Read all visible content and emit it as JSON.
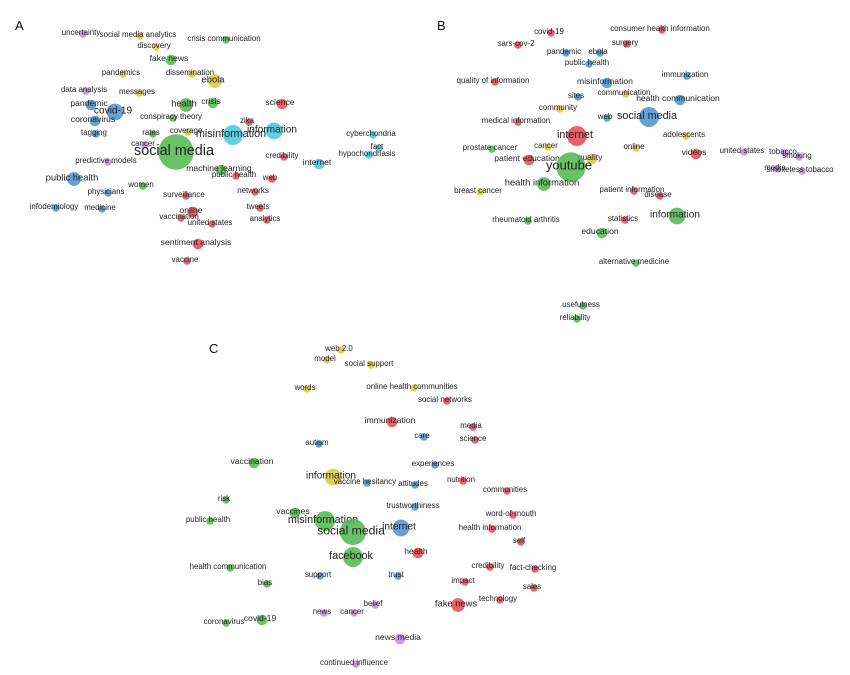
{
  "colors": {
    "red": "#e8474e",
    "green": "#4cb84a",
    "blue": "#4a90d0",
    "yellow": "#d9c93a",
    "purple": "#b98de0",
    "cyan": "#45c4de"
  },
  "panels": [
    {
      "letter": "A",
      "nodes": [
        {
          "label": "uncertainty",
          "c": "purple",
          "w": 1
        },
        {
          "label": "social media analytics",
          "c": "yellow",
          "w": 1
        },
        {
          "label": "crisis communication",
          "c": "green",
          "w": 1
        },
        {
          "label": "discovery",
          "c": "yellow",
          "w": 1
        },
        {
          "label": "fake news",
          "c": "green",
          "w": 2
        },
        {
          "label": "dissemination",
          "c": "yellow",
          "w": 1
        },
        {
          "label": "pandemics",
          "c": "yellow",
          "w": 1
        },
        {
          "label": "ebola",
          "c": "yellow",
          "w": 3
        },
        {
          "label": "data analysis",
          "c": "purple",
          "w": 1
        },
        {
          "label": "messages",
          "c": "yellow",
          "w": 1
        },
        {
          "label": "pandemic",
          "c": "blue",
          "w": 2
        },
        {
          "label": "health",
          "c": "green",
          "w": 3
        },
        {
          "label": "crisis",
          "c": "green",
          "w": 2
        },
        {
          "label": "science",
          "c": "red",
          "w": 2
        },
        {
          "label": "covid-19",
          "c": "blue",
          "w": 4
        },
        {
          "label": "conspiracy theory",
          "c": "green",
          "w": 1
        },
        {
          "label": "coronavirus",
          "c": "blue",
          "w": 2
        },
        {
          "label": "zika",
          "c": "red",
          "w": 1
        },
        {
          "label": "tagging",
          "c": "blue",
          "w": 1
        },
        {
          "label": "rates",
          "c": "green",
          "w": 1
        },
        {
          "label": "coverage",
          "c": "yellow",
          "w": 1
        },
        {
          "label": "information",
          "c": "cyan",
          "w": 4
        },
        {
          "label": "misinformation",
          "c": "cyan",
          "w": 5
        },
        {
          "label": "cyberchondria",
          "c": "cyan",
          "w": 1
        },
        {
          "label": "cancer",
          "c": "purple",
          "w": 1
        },
        {
          "label": "social media",
          "c": "green",
          "w": 10
        },
        {
          "label": "fact",
          "c": "cyan",
          "w": 1
        },
        {
          "label": "hypochondriasis",
          "c": "cyan",
          "w": 1
        },
        {
          "label": "credibility",
          "c": "red",
          "w": 1
        },
        {
          "label": "predictive models",
          "c": "purple",
          "w": 1
        },
        {
          "label": "machine learning",
          "c": "green",
          "w": 2
        },
        {
          "label": "internet",
          "c": "cyan",
          "w": 2
        },
        {
          "label": "public health",
          "c": "blue",
          "w": 3
        },
        {
          "label": "public health",
          "c": "red",
          "w": 1
        },
        {
          "label": "web",
          "c": "red",
          "w": 1
        },
        {
          "label": "women",
          "c": "green",
          "w": 1
        },
        {
          "label": "physicians",
          "c": "blue",
          "w": 1
        },
        {
          "label": "networks",
          "c": "red",
          "w": 1
        },
        {
          "label": "surveillance",
          "c": "red",
          "w": 1
        },
        {
          "label": "infodemiology",
          "c": "blue",
          "w": 1
        },
        {
          "label": "medicine",
          "c": "blue",
          "w": 1
        },
        {
          "label": "tweets",
          "c": "red",
          "w": 1
        },
        {
          "label": "online",
          "c": "red",
          "w": 2
        },
        {
          "label": "vaccination",
          "c": "red",
          "w": 1
        },
        {
          "label": "analytics",
          "c": "red",
          "w": 1
        },
        {
          "label": "united states",
          "c": "red",
          "w": 1
        },
        {
          "label": "sentiment analysis",
          "c": "red",
          "w": 2
        },
        {
          "label": "vaccine",
          "c": "red",
          "w": 1
        }
      ]
    },
    {
      "letter": "B",
      "nodes": [
        {
          "label": "covid-19",
          "c": "red",
          "w": 1
        },
        {
          "label": "consumer health information",
          "c": "red",
          "w": 1
        },
        {
          "label": "sars-cov-2",
          "c": "red",
          "w": 1
        },
        {
          "label": "surgery",
          "c": "red",
          "w": 1
        },
        {
          "label": "pandemic",
          "c": "blue",
          "w": 1
        },
        {
          "label": "ebola",
          "c": "blue",
          "w": 1
        },
        {
          "label": "public health",
          "c": "blue",
          "w": 1
        },
        {
          "label": "immunization",
          "c": "blue",
          "w": 1
        },
        {
          "label": "quality of information",
          "c": "red",
          "w": 1
        },
        {
          "label": "misinformation",
          "c": "blue",
          "w": 2
        },
        {
          "label": "communication",
          "c": "yellow",
          "w": 1
        },
        {
          "label": "sites",
          "c": "blue",
          "w": 1
        },
        {
          "label": "health communication",
          "c": "blue",
          "w": 2
        },
        {
          "label": "community",
          "c": "yellow",
          "w": 1
        },
        {
          "label": "web",
          "c": "blue",
          "w": 1
        },
        {
          "label": "social media",
          "c": "blue",
          "w": 5
        },
        {
          "label": "medical information",
          "c": "red",
          "w": 1
        },
        {
          "label": "adolescents",
          "c": "yellow",
          "w": 1
        },
        {
          "label": "internet",
          "c": "red",
          "w": 5
        },
        {
          "label": "cancer",
          "c": "yellow",
          "w": 1
        },
        {
          "label": "online",
          "c": "yellow",
          "w": 1
        },
        {
          "label": "prostate cancer",
          "c": "green",
          "w": 1
        },
        {
          "label": "united states",
          "c": "purple",
          "w": 1
        },
        {
          "label": "tobacco",
          "c": "purple",
          "w": 1
        },
        {
          "label": "patient education",
          "c": "red",
          "w": 2
        },
        {
          "label": "quality",
          "c": "yellow",
          "w": 2
        },
        {
          "label": "videos",
          "c": "red",
          "w": 2
        },
        {
          "label": "smoking",
          "c": "purple",
          "w": 1
        },
        {
          "label": "youtube",
          "c": "green",
          "w": 8
        },
        {
          "label": "media",
          "c": "purple",
          "w": 1
        },
        {
          "label": "smokeless tobacco",
          "c": "purple",
          "w": 1
        },
        {
          "label": "health information",
          "c": "green",
          "w": 3
        },
        {
          "label": "patient information",
          "c": "red",
          "w": 1
        },
        {
          "label": "disease",
          "c": "red",
          "w": 1
        },
        {
          "label": "breast cancer",
          "c": "yellow",
          "w": 1
        },
        {
          "label": "statistics",
          "c": "red",
          "w": 1
        },
        {
          "label": "information",
          "c": "green",
          "w": 4
        },
        {
          "label": "rheumatoid arthritis",
          "c": "green",
          "w": 1
        },
        {
          "label": "education",
          "c": "green",
          "w": 2
        },
        {
          "label": "alternative medicine",
          "c": "green",
          "w": 1
        },
        {
          "label": "usefulness",
          "c": "green",
          "w": 1
        },
        {
          "label": "reliability",
          "c": "green",
          "w": 1
        }
      ]
    },
    {
      "letter": "C",
      "nodes": [
        {
          "label": "web 2.0",
          "c": "yellow",
          "w": 1
        },
        {
          "label": "model",
          "c": "yellow",
          "w": 1
        },
        {
          "label": "social support",
          "c": "yellow",
          "w": 1
        },
        {
          "label": "words",
          "c": "yellow",
          "w": 1
        },
        {
          "label": "online health communities",
          "c": "yellow",
          "w": 1
        },
        {
          "label": "social networks",
          "c": "red",
          "w": 1
        },
        {
          "label": "immunization",
          "c": "red",
          "w": 2
        },
        {
          "label": "media",
          "c": "red",
          "w": 1
        },
        {
          "label": "care",
          "c": "blue",
          "w": 1
        },
        {
          "label": "science",
          "c": "red",
          "w": 1
        },
        {
          "label": "autism",
          "c": "blue",
          "w": 1
        },
        {
          "label": "vaccination",
          "c": "green",
          "w": 2
        },
        {
          "label": "experiences",
          "c": "blue",
          "w": 1
        },
        {
          "label": "information",
          "c": "yellow",
          "w": 4
        },
        {
          "label": "nutrition",
          "c": "red",
          "w": 1
        },
        {
          "label": "vaccine hesitancy",
          "c": "blue",
          "w": 1
        },
        {
          "label": "attitudes",
          "c": "blue",
          "w": 1
        },
        {
          "label": "communities",
          "c": "red",
          "w": 1
        },
        {
          "label": "risk",
          "c": "green",
          "w": 1
        },
        {
          "label": "trustworthiness",
          "c": "blue",
          "w": 1
        },
        {
          "label": "word-of-mouth",
          "c": "red",
          "w": 1
        },
        {
          "label": "public health",
          "c": "green",
          "w": 1
        },
        {
          "label": "vaccines",
          "c": "green",
          "w": 2
        },
        {
          "label": "misinformation",
          "c": "green",
          "w": 5
        },
        {
          "label": "internet",
          "c": "blue",
          "w": 4
        },
        {
          "label": "health information",
          "c": "red",
          "w": 1
        },
        {
          "label": "self",
          "c": "red",
          "w": 1
        },
        {
          "label": "social media",
          "c": "green",
          "w": 7
        },
        {
          "label": "health",
          "c": "red",
          "w": 2
        },
        {
          "label": "facebook",
          "c": "green",
          "w": 5
        },
        {
          "label": "health communication",
          "c": "green",
          "w": 1
        },
        {
          "label": "credibility",
          "c": "red",
          "w": 1
        },
        {
          "label": "fact-checking",
          "c": "red",
          "w": 1
        },
        {
          "label": "trust",
          "c": "blue",
          "w": 1
        },
        {
          "label": "bias",
          "c": "green",
          "w": 1
        },
        {
          "label": "support",
          "c": "blue",
          "w": 1
        },
        {
          "label": "impact",
          "c": "red",
          "w": 1
        },
        {
          "label": "sales",
          "c": "red",
          "w": 1
        },
        {
          "label": "technology",
          "c": "red",
          "w": 1
        },
        {
          "label": "belief",
          "c": "purple",
          "w": 1
        },
        {
          "label": "fake news",
          "c": "red",
          "w": 3
        },
        {
          "label": "news",
          "c": "purple",
          "w": 1
        },
        {
          "label": "cancer",
          "c": "purple",
          "w": 1
        },
        {
          "label": "coronavirus",
          "c": "green",
          "w": 1
        },
        {
          "label": "covid-19",
          "c": "green",
          "w": 2
        },
        {
          "label": "news media",
          "c": "purple",
          "w": 2
        },
        {
          "label": "continued influence",
          "c": "purple",
          "w": 1
        }
      ]
    }
  ]
}
